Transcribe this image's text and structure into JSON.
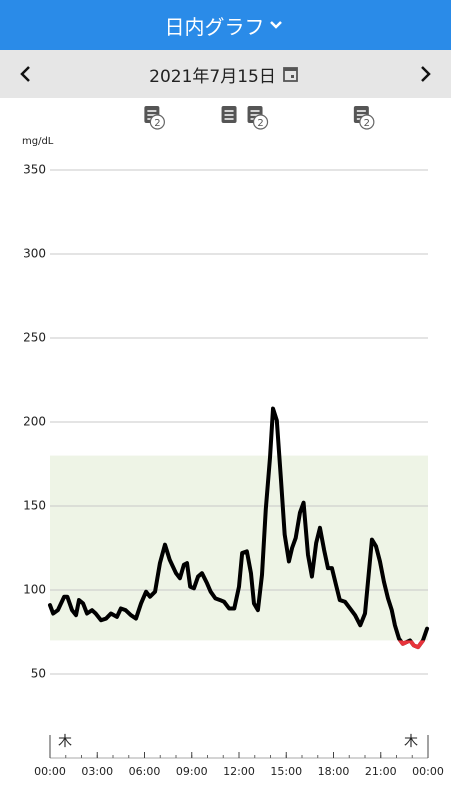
{
  "header": {
    "title": "日内グラフ"
  },
  "date_nav": {
    "date": "2021年7月15日"
  },
  "notes": [
    {
      "x": 6.5,
      "badge": "2"
    },
    {
      "x": 11.4
    },
    {
      "x": 13.05,
      "badge": "2"
    },
    {
      "x": 19.8,
      "badge": "2"
    }
  ],
  "chart_data": {
    "type": "line",
    "y_label": "mg/dL",
    "day_labels": [
      "木",
      "木"
    ],
    "x": [
      0,
      0.2,
      0.5,
      0.9,
      1.1,
      1.4,
      1.65,
      1.84,
      2.1,
      2.35,
      2.67,
      2.9,
      3.24,
      3.56,
      3.87,
      4.25,
      4.5,
      4.8,
      5.14,
      5.46,
      5.78,
      6.1,
      6.35,
      6.67,
      6.98,
      7.3,
      7.6,
      8.0,
      8.25,
      8.5,
      8.7,
      8.9,
      9.14,
      9.4,
      9.65,
      9.97,
      10.2,
      10.5,
      10.8,
      11.05,
      11.37,
      11.7,
      12.0,
      12.2,
      12.5,
      12.76,
      12.95,
      13.2,
      13.46,
      13.7,
      13.97,
      14.16,
      14.4,
      14.67,
      14.9,
      15.17,
      15.37,
      15.6,
      15.87,
      16.1,
      16.38,
      16.63,
      16.9,
      17.14,
      17.4,
      17.65,
      17.9,
      18.16,
      18.4,
      18.73,
      19.05,
      19.37,
      19.7,
      20.0,
      20.2,
      20.44,
      20.7,
      20.95,
      21.2,
      21.46,
      21.7,
      21.9,
      22.16,
      22.4,
      22.86,
      23.1,
      23.37,
      23.68,
      23.94
    ],
    "series": [
      {
        "color": "#000000",
        "values": [
          91,
          86,
          88,
          96,
          96,
          88,
          85,
          94,
          92,
          86,
          88,
          86,
          82,
          83,
          86,
          84,
          89,
          88,
          85,
          83,
          92,
          99,
          96,
          99,
          116,
          127,
          118,
          110,
          107,
          115,
          116,
          102,
          101,
          108,
          110,
          104,
          99,
          95,
          94,
          93,
          89,
          89,
          102,
          122,
          123,
          110,
          92,
          88,
          109,
          148,
          179,
          208,
          201,
          165,
          133,
          117,
          125,
          131,
          146,
          152,
          121,
          108,
          128,
          137,
          124,
          113,
          113,
          103,
          94,
          93,
          89,
          85,
          79,
          86,
          106,
          130,
          126,
          117,
          105,
          95,
          88,
          79,
          71,
          68,
          70,
          67,
          66,
          70,
          77
        ]
      }
    ],
    "target_range": [
      70,
      180
    ],
    "range_color": "#eef4e6",
    "low_color": "#e8343c",
    "xlim": [
      0,
      24
    ],
    "xticks": [
      {
        "value": 0,
        "label": "00:00"
      },
      {
        "value": 3,
        "label": "03:00"
      },
      {
        "value": 6,
        "label": "06:00"
      },
      {
        "value": 9,
        "label": "09:00"
      },
      {
        "value": 12,
        "label": "12:00"
      },
      {
        "value": 15,
        "label": "15:00"
      },
      {
        "value": 18,
        "label": "18:00"
      },
      {
        "value": 21,
        "label": "21:00"
      },
      {
        "value": 24,
        "label": "00:00"
      }
    ],
    "ylim": [
      0,
      350
    ],
    "yticks": [
      50,
      100,
      150,
      200,
      250,
      300,
      350
    ],
    "grid": true
  }
}
